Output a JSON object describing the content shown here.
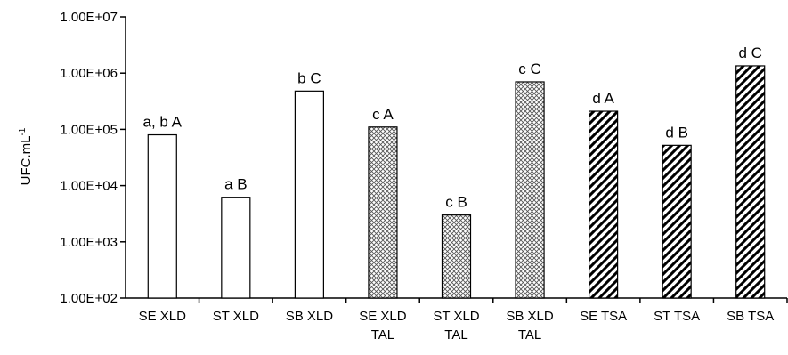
{
  "chart_data": {
    "type": "bar",
    "yscale": "log",
    "ylim": [
      100,
      10000000
    ],
    "ylabel": "UFC.mL",
    "ylabel_superscript": "-1",
    "yticks": [
      "1.00E+02",
      "1.00E+03",
      "1.00E+04",
      "1.00E+05",
      "1.00E+06",
      "1.00E+07"
    ],
    "grid": false,
    "legend": "none",
    "categories": [
      [
        "SE XLD"
      ],
      [
        "ST XLD"
      ],
      [
        "SB XLD"
      ],
      [
        "SE XLD",
        "TAL"
      ],
      [
        "ST XLD",
        "TAL"
      ],
      [
        "SB XLD",
        "TAL"
      ],
      [
        "SE TSA"
      ],
      [
        "ST TSA"
      ],
      [
        "SB TSA"
      ]
    ],
    "values": [
      80000,
      6200,
      480000,
      110000,
      3000,
      700000,
      210000,
      52000,
      1350000
    ],
    "data_labels": [
      "a, b A",
      "a B",
      "b C",
      "c A",
      "c B",
      "c C",
      "d A",
      "d B",
      "d C"
    ],
    "fills": [
      "white",
      "white",
      "white",
      "crosshatch",
      "crosshatch",
      "crosshatch",
      "diagonal",
      "diagonal",
      "diagonal"
    ]
  }
}
